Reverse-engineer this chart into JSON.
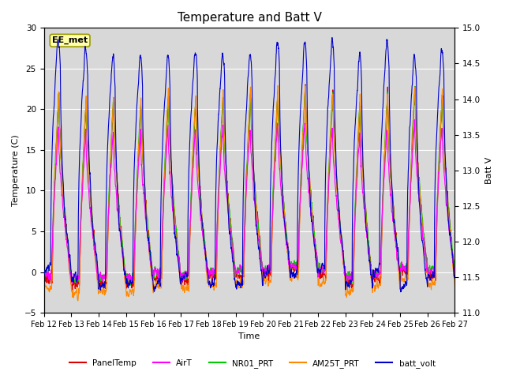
{
  "title": "Temperature and Batt V",
  "xlabel": "Time",
  "ylabel_left": "Temperature (C)",
  "ylabel_right": "Batt V",
  "ylim_left": [
    -5,
    30
  ],
  "ylim_right": [
    11.0,
    15.0
  ],
  "yticks_left": [
    -5,
    0,
    5,
    10,
    15,
    20,
    25,
    30
  ],
  "yticks_right": [
    11.0,
    11.5,
    12.0,
    12.5,
    13.0,
    13.5,
    14.0,
    14.5,
    15.0
  ],
  "x_tick_labels": [
    "Feb 12",
    "Feb 13",
    "Feb 14",
    "Feb 15",
    "Feb 16",
    "Feb 17",
    "Feb 18",
    "Feb 19",
    "Feb 20",
    "Feb 21",
    "Feb 22",
    "Feb 23",
    "Feb 24",
    "Feb 25",
    "Feb 26",
    "Feb 27"
  ],
  "station_label": "EE_met",
  "colors": {
    "PanelTemp": "#dd0000",
    "AirT": "#ff00ff",
    "NR01_PRT": "#00cc00",
    "AM25T_PRT": "#ff8800",
    "batt_volt": "#0000cc"
  },
  "background_color": "#ffffff",
  "plot_bg_color": "#d8d8d8",
  "grid_color": "#ffffff",
  "title_fontsize": 11,
  "n_days": 15,
  "pts_per_day": 144
}
